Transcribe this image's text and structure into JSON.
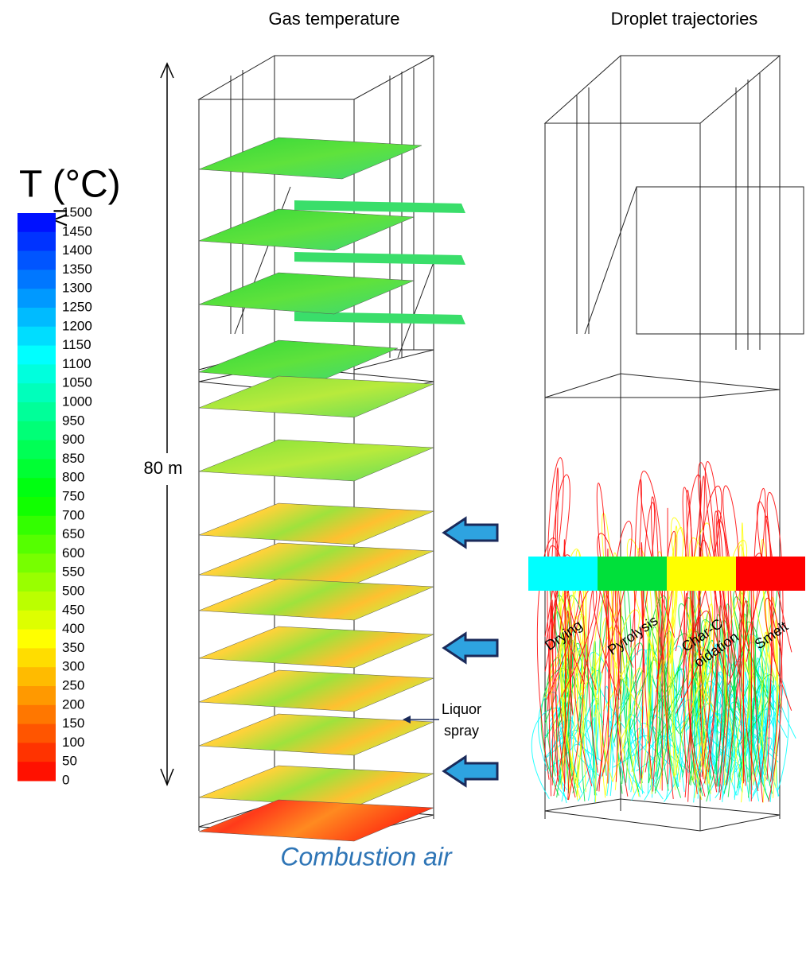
{
  "titles": {
    "left": "Gas temperature",
    "right": "Droplet trajectories"
  },
  "colorbar": {
    "title": "T (°C)",
    "mark": "IV",
    "labels": [
      1500,
      1450,
      1400,
      1350,
      1300,
      1250,
      1200,
      1150,
      1100,
      1050,
      1000,
      950,
      900,
      850,
      800,
      750,
      700,
      650,
      600,
      550,
      500,
      450,
      400,
      350,
      300,
      250,
      200,
      150,
      100,
      50,
      0
    ]
  },
  "height_label": "80 m",
  "spray_label": [
    "Liquor",
    "spray"
  ],
  "air_label": "Combustion air",
  "legend": [
    {
      "label": [
        "Drying"
      ],
      "color": "#00ffff"
    },
    {
      "label": [
        "Pyrolysis"
      ],
      "color": "#00e03a"
    },
    {
      "label": [
        "Char-C",
        "oidation"
      ],
      "color": "#ffff00"
    },
    {
      "label": [
        "Smelt"
      ],
      "color": "#ff0000"
    }
  ]
}
